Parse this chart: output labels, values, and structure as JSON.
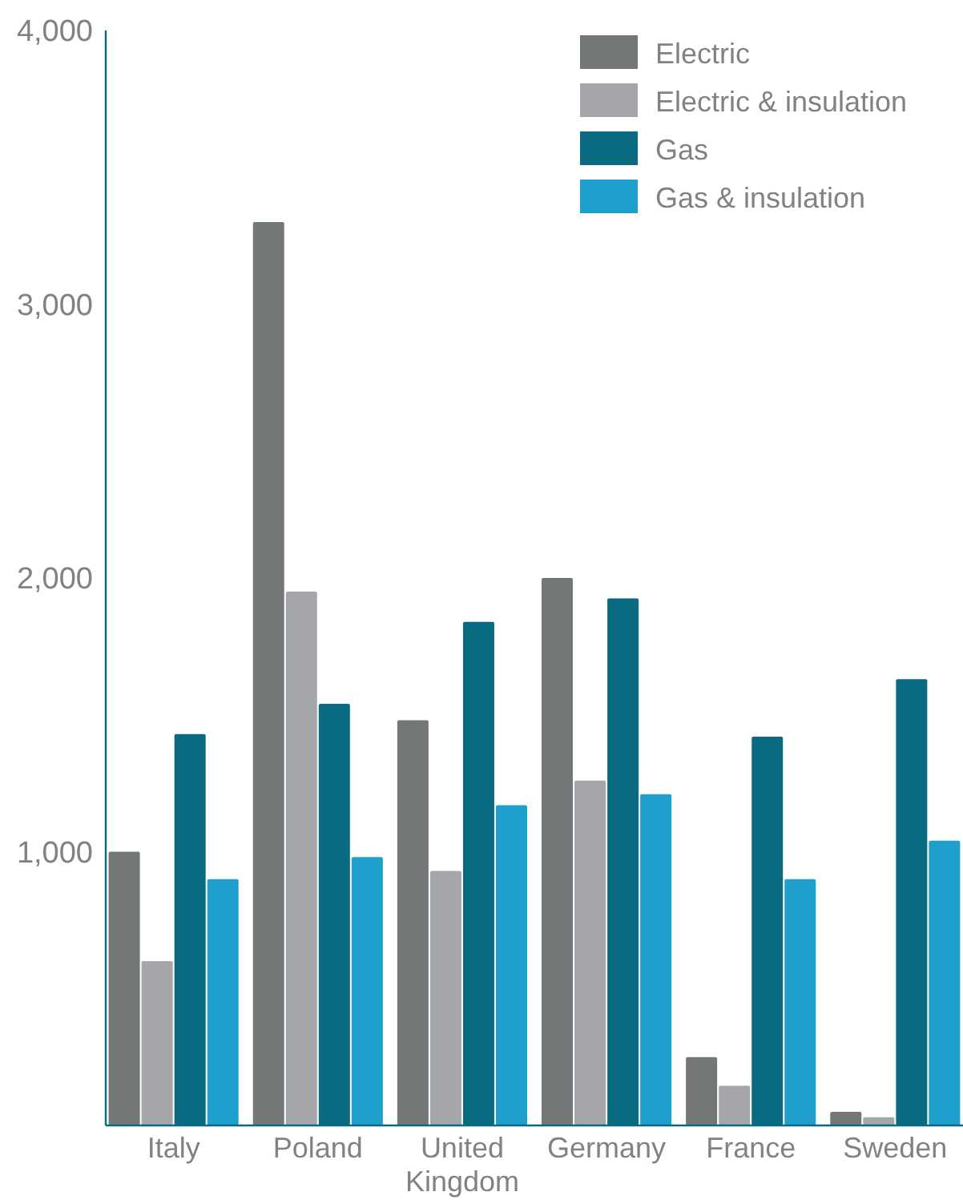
{
  "chart_data": {
    "type": "bar",
    "categories": [
      "Italy",
      "Poland",
      "United Kingdom",
      "Germany",
      "France",
      "Sweden"
    ],
    "series": [
      {
        "name": "Electric",
        "color": "#737778",
        "values": [
          1000,
          3300,
          1480,
          2000,
          250,
          50
        ]
      },
      {
        "name": "Electric & insulation",
        "color": "#a5a6a9",
        "values": [
          600,
          1950,
          930,
          1260,
          145,
          30
        ]
      },
      {
        "name": "Gas",
        "color": "#0a6b80",
        "values": [
          1430,
          1540,
          1840,
          1925,
          1420,
          1630
        ]
      },
      {
        "name": "Gas & insulation",
        "color": "#1fa0cc",
        "values": [
          900,
          980,
          1170,
          1210,
          900,
          1040
        ]
      }
    ],
    "ylim": [
      0,
      4000
    ],
    "yticks": [
      {
        "value": 1000,
        "label": "1,000"
      },
      {
        "value": 2000,
        "label": "2,000"
      },
      {
        "value": 3000,
        "label": "3,000"
      },
      {
        "value": 4000,
        "label": "4,000"
      }
    ],
    "grid": false,
    "legend": "top right"
  }
}
